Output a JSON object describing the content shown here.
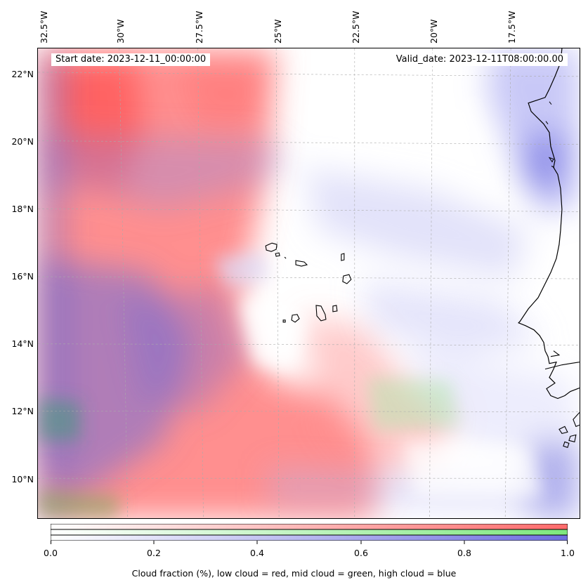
{
  "header": {
    "start_date": "Start date: 2023-12-11_00:00:00",
    "valid_date": "Valid_date: 2023-12-11T08:00:00.00"
  },
  "lon_labels": [
    "32.5°W",
    "30°W",
    "27.5°W",
    "25°W",
    "22.5°W",
    "20°W",
    "17.5°W"
  ],
  "lat_labels": [
    "22°N",
    "20°N",
    "18°N",
    "16°N",
    "14°N",
    "12°N",
    "10°N"
  ],
  "colorbar": {
    "ticks": [
      "0.0",
      "0.2",
      "0.4",
      "0.6",
      "0.8",
      "1.0"
    ],
    "label": "Cloud fraction (%), low cloud = red, mid cloud = green, high cloud = blue",
    "colors": {
      "low": "#ff6b6b",
      "mid": "#7ee87e",
      "high": "#6f6fe0"
    }
  },
  "map": {
    "region": "Cape Verde / West African coast",
    "layers": [
      "low-cloud",
      "mid-cloud",
      "high-cloud",
      "coastline",
      "gridlines"
    ]
  }
}
